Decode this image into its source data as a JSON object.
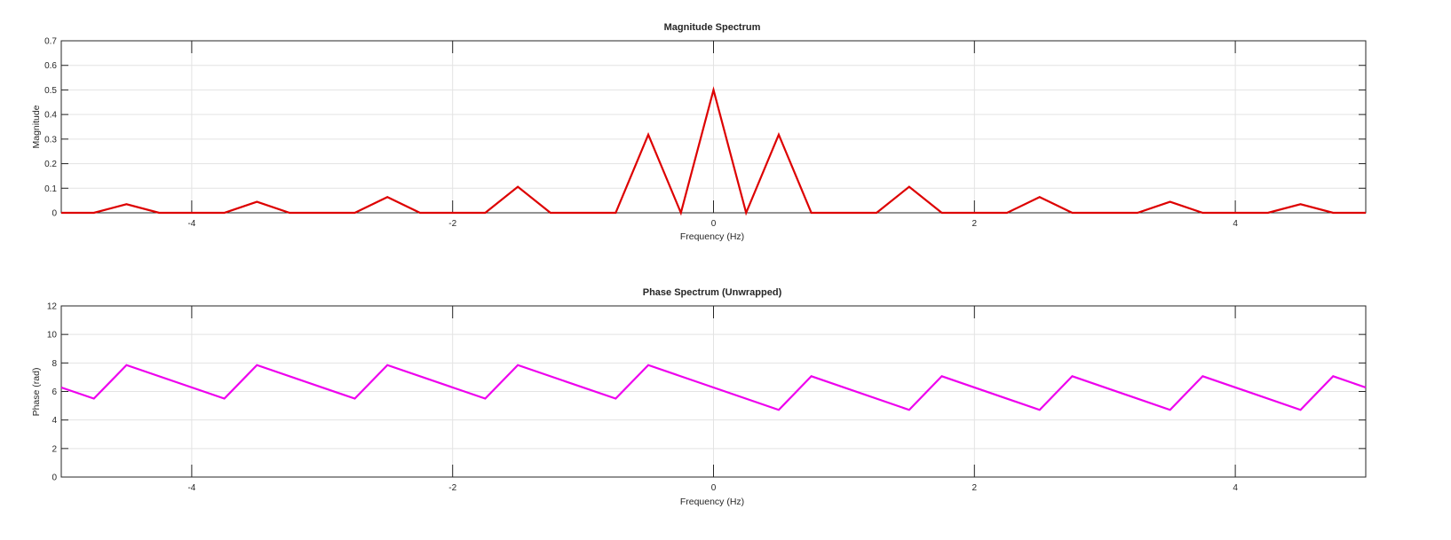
{
  "chart_data": [
    {
      "type": "line",
      "title": "Magnitude Spectrum",
      "xlabel": "Frequency (Hz)",
      "ylabel": "Magnitude",
      "xlim": [
        -5,
        5
      ],
      "ylim": [
        0,
        0.7
      ],
      "xticks": [
        -4,
        -2,
        0,
        2,
        4
      ],
      "yticks": [
        0,
        0.1,
        0.2,
        0.3,
        0.4,
        0.5,
        0.6,
        0.7
      ],
      "grid": true,
      "color": "#dd0000",
      "x": [
        -5,
        -4.75,
        -4.5,
        -4.25,
        -4,
        -3.75,
        -3.5,
        -3.25,
        -3,
        -2.75,
        -2.5,
        -2.25,
        -2,
        -1.75,
        -1.5,
        -1.25,
        -1,
        -0.75,
        -0.5,
        -0.25,
        0,
        0.25,
        0.5,
        0.75,
        1,
        1.25,
        1.5,
        1.75,
        2,
        2.25,
        2.5,
        2.75,
        3,
        3.25,
        3.5,
        3.75,
        4,
        4.25,
        4.5,
        4.75,
        5
      ],
      "y": [
        0,
        0,
        0.035,
        0,
        0,
        0,
        0.045,
        0,
        0,
        0,
        0.064,
        0,
        0,
        0,
        0.106,
        0,
        0,
        0,
        0.318,
        0,
        0.5,
        0,
        0.318,
        0,
        0,
        0,
        0.106,
        0,
        0,
        0,
        0.064,
        0,
        0,
        0,
        0.045,
        0,
        0,
        0,
        0.035,
        0,
        0
      ]
    },
    {
      "type": "line",
      "title": "Phase Spectrum (Unwrapped)",
      "xlabel": "Frequency (Hz)",
      "ylabel": "Phase (rad)",
      "xlim": [
        -5,
        5
      ],
      "ylim": [
        0,
        12
      ],
      "xticks": [
        -4,
        -2,
        0,
        2,
        4
      ],
      "yticks": [
        0,
        2,
        4,
        6,
        8,
        10,
        12
      ],
      "grid": true,
      "color": "#ee00ee",
      "x": [
        -5,
        -4.75,
        -4.5,
        -3.75,
        -3.5,
        -2.75,
        -2.5,
        -1.75,
        -1.5,
        -0.75,
        -0.5,
        0.5,
        0.75,
        1.5,
        1.75,
        2.5,
        2.75,
        3.5,
        3.75,
        4.5,
        4.75,
        5
      ],
      "y": [
        6.28,
        5.5,
        7.85,
        5.5,
        7.85,
        5.5,
        7.85,
        5.5,
        7.85,
        5.5,
        7.85,
        4.71,
        7.07,
        4.71,
        7.07,
        4.71,
        7.07,
        4.71,
        7.07,
        4.71,
        7.07,
        6.28
      ]
    }
  ]
}
